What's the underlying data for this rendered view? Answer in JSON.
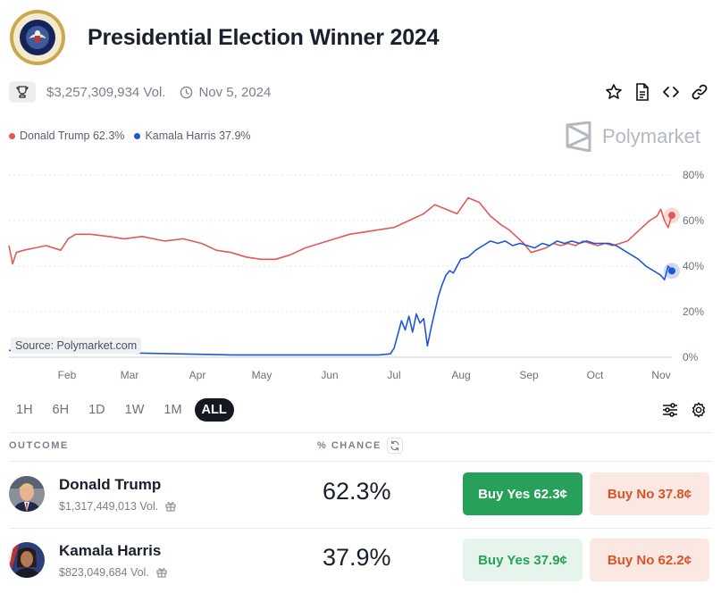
{
  "header": {
    "title": "Presidential Election Winner 2024"
  },
  "meta": {
    "volume": "$3,257,309,934 Vol.",
    "date": "Nov 5, 2024"
  },
  "legend": [
    {
      "label": "Donald Trump 62.3%",
      "color": "#e15a56"
    },
    {
      "label": "Kamala Harris 37.9%",
      "color": "#2156d3"
    }
  ],
  "brand": "Polymarket",
  "chart_data": {
    "type": "line",
    "x_ticks": [
      "Feb",
      "Mar",
      "Apr",
      "May",
      "Jun",
      "Jul",
      "Aug",
      "Sep",
      "Oct",
      "Nov"
    ],
    "y_ticks": [
      "80%",
      "60%",
      "40%",
      "20%",
      "0%"
    ],
    "ylim": [
      0,
      80
    ],
    "grid": true,
    "source_label": "Source: Polymarket.com",
    "series": [
      {
        "name": "Donald Trump",
        "color": "#e15a56",
        "end_value": 62.3,
        "points": [
          [
            0,
            49
          ],
          [
            1,
            41
          ],
          [
            2,
            46
          ],
          [
            4,
            47
          ],
          [
            7,
            48
          ],
          [
            10,
            49
          ],
          [
            14,
            47
          ],
          [
            16,
            52
          ],
          [
            18,
            54
          ],
          [
            22,
            54
          ],
          [
            27,
            53
          ],
          [
            31,
            52
          ],
          [
            36,
            53
          ],
          [
            42,
            51
          ],
          [
            47,
            52
          ],
          [
            52,
            50
          ],
          [
            56,
            47
          ],
          [
            60,
            46
          ],
          [
            64,
            44
          ],
          [
            68,
            43
          ],
          [
            72,
            43
          ],
          [
            76,
            45
          ],
          [
            80,
            48
          ],
          [
            84,
            50
          ],
          [
            88,
            52
          ],
          [
            92,
            54
          ],
          [
            96,
            55
          ],
          [
            100,
            56
          ],
          [
            104,
            57
          ],
          [
            108,
            60
          ],
          [
            112,
            63
          ],
          [
            115,
            67
          ],
          [
            118,
            65
          ],
          [
            121,
            63
          ],
          [
            124,
            70
          ],
          [
            127,
            68
          ],
          [
            130,
            62
          ],
          [
            133,
            58
          ],
          [
            135,
            56
          ],
          [
            137,
            53
          ],
          [
            139,
            50
          ],
          [
            141,
            46
          ],
          [
            143,
            47
          ],
          [
            145,
            48
          ],
          [
            147,
            50
          ],
          [
            149,
            49
          ],
          [
            151,
            50
          ],
          [
            153,
            49
          ],
          [
            155,
            51
          ],
          [
            157,
            50
          ],
          [
            159,
            49
          ],
          [
            161,
            50
          ],
          [
            163,
            49
          ],
          [
            165,
            50
          ],
          [
            167,
            51
          ],
          [
            169,
            54
          ],
          [
            171,
            57
          ],
          [
            173,
            60
          ],
          [
            175,
            62
          ],
          [
            176,
            65
          ],
          [
            177,
            60
          ],
          [
            178,
            57
          ],
          [
            179,
            62.3
          ]
        ]
      },
      {
        "name": "Kamala Harris",
        "color": "#2156d3",
        "end_value": 37.9,
        "points": [
          [
            0,
            3
          ],
          [
            10,
            2
          ],
          [
            30,
            2
          ],
          [
            60,
            1
          ],
          [
            90,
            1
          ],
          [
            100,
            1
          ],
          [
            103,
            1.5
          ],
          [
            104,
            4
          ],
          [
            105,
            10
          ],
          [
            106,
            16
          ],
          [
            107,
            12
          ],
          [
            108,
            18
          ],
          [
            109,
            11
          ],
          [
            110,
            19
          ],
          [
            111,
            15
          ],
          [
            112,
            17
          ],
          [
            113,
            5
          ],
          [
            114,
            13
          ],
          [
            115,
            20
          ],
          [
            116,
            27
          ],
          [
            117,
            32
          ],
          [
            118,
            36
          ],
          [
            119,
            38
          ],
          [
            120,
            37
          ],
          [
            121,
            40
          ],
          [
            122,
            43
          ],
          [
            124,
            44
          ],
          [
            126,
            47
          ],
          [
            128,
            49
          ],
          [
            130,
            51
          ],
          [
            132,
            50
          ],
          [
            134,
            51
          ],
          [
            136,
            49
          ],
          [
            138,
            50
          ],
          [
            140,
            49
          ],
          [
            142,
            48
          ],
          [
            144,
            50
          ],
          [
            146,
            49
          ],
          [
            148,
            51
          ],
          [
            150,
            50
          ],
          [
            152,
            51
          ],
          [
            154,
            50
          ],
          [
            156,
            51
          ],
          [
            158,
            50
          ],
          [
            160,
            50
          ],
          [
            162,
            50
          ],
          [
            164,
            49
          ],
          [
            166,
            47
          ],
          [
            168,
            45
          ],
          [
            170,
            43
          ],
          [
            172,
            40
          ],
          [
            174,
            38
          ],
          [
            176,
            36
          ],
          [
            177,
            34
          ],
          [
            178,
            40
          ],
          [
            179,
            37.9
          ]
        ]
      }
    ]
  },
  "ranges": [
    "1H",
    "6H",
    "1D",
    "1W",
    "1M",
    "ALL"
  ],
  "active_range": "ALL",
  "table": {
    "col_outcome": "OUTCOME",
    "col_chance": "% CHANCE",
    "rows": [
      {
        "name": "Donald Trump",
        "volume": "$1,317,449,013 Vol.",
        "chance": "62.3%",
        "buy_yes": "Buy Yes 62.3¢",
        "buy_no": "Buy No 37.8¢"
      },
      {
        "name": "Kamala Harris",
        "volume": "$823,049,684 Vol.",
        "chance": "37.9%",
        "buy_yes": "Buy Yes 37.9¢",
        "buy_no": "Buy No 62.2¢"
      }
    ]
  }
}
